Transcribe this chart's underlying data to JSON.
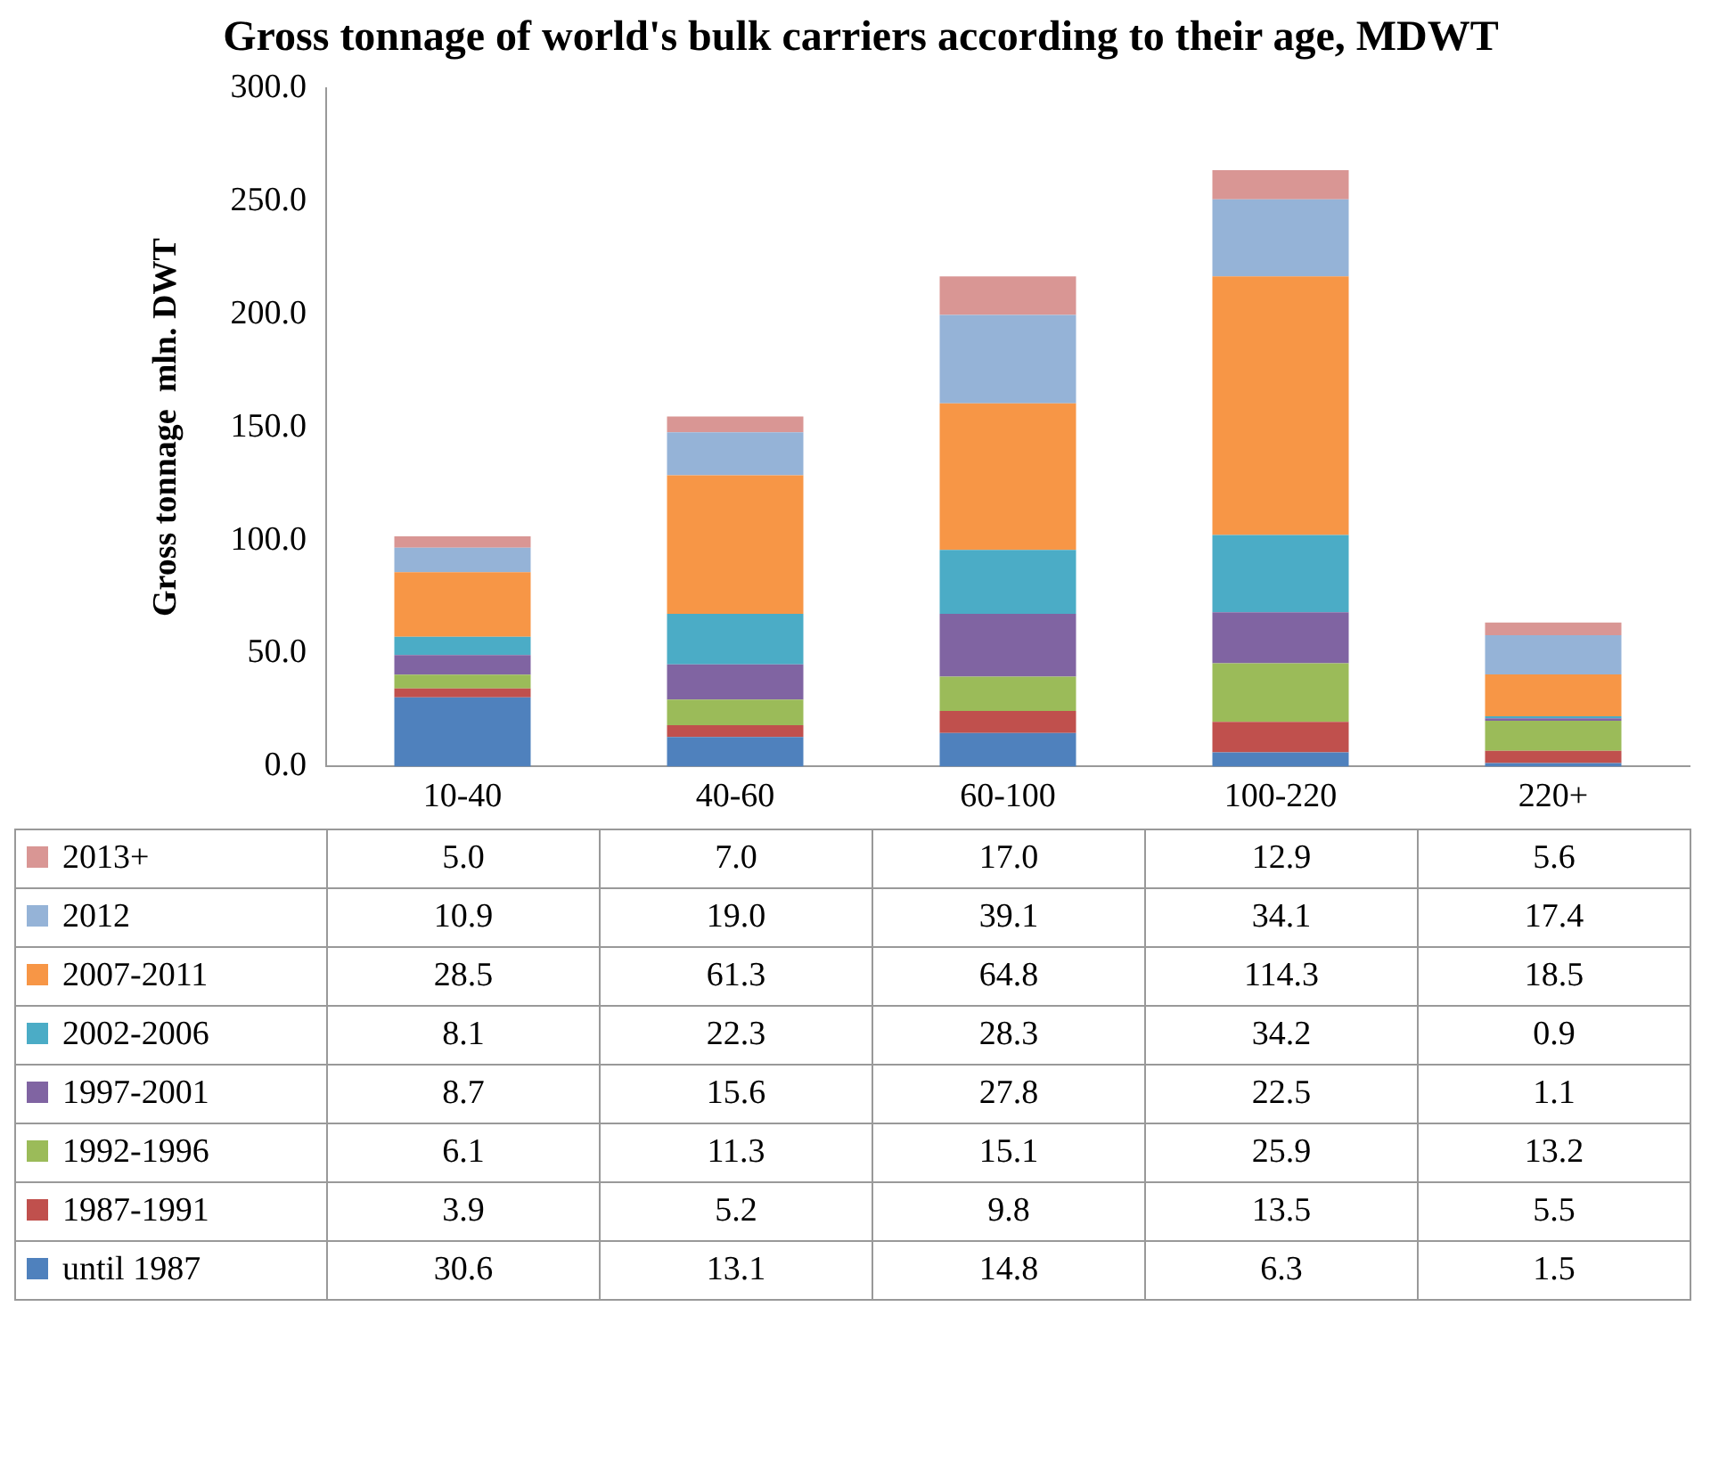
{
  "chart_data": {
    "type": "bar",
    "title": "Gross tonnage of world's bulk carriers according to their age, MDWT",
    "ylabel": "Gross tonnage  mln. DWT",
    "categories": [
      "10-40",
      "40-60",
      "60-100",
      "100-220",
      "220+"
    ],
    "stacked": true,
    "legend": "bottom",
    "grid": false,
    "ylim": [
      0,
      300
    ],
    "yticks": [
      {
        "value": 0,
        "label": "0.0"
      },
      {
        "value": 50,
        "label": "50.0"
      },
      {
        "value": 100,
        "label": "100.0"
      },
      {
        "value": 150,
        "label": "150.0"
      },
      {
        "value": 200,
        "label": "200.0"
      },
      {
        "value": 250,
        "label": "250.0"
      },
      {
        "value": 300,
        "label": "300.0"
      }
    ],
    "series": [
      {
        "name": "until 1987",
        "color": "#4f81bd",
        "values": [
          30.6,
          13.1,
          14.8,
          6.3,
          1.5
        ],
        "value_labels": [
          "30.6",
          "13.1",
          "14.8",
          "6.3",
          "1.5"
        ]
      },
      {
        "name": "1987-1991",
        "color": "#c0504d",
        "values": [
          3.9,
          5.2,
          9.8,
          13.5,
          5.5
        ],
        "value_labels": [
          "3.9",
          "5.2",
          "9.8",
          "13.5",
          "5.5"
        ]
      },
      {
        "name": "1992-1996",
        "color": "#9bbb59",
        "values": [
          6.1,
          11.3,
          15.1,
          25.9,
          13.2
        ],
        "value_labels": [
          "6.1",
          "11.3",
          "15.1",
          "25.9",
          "13.2"
        ]
      },
      {
        "name": "1997-2001",
        "color": "#8064a2",
        "values": [
          8.7,
          15.6,
          27.8,
          22.5,
          1.1
        ],
        "value_labels": [
          "8.7",
          "15.6",
          "27.8",
          "22.5",
          "1.1"
        ]
      },
      {
        "name": "2002-2006",
        "color": "#4bacc6",
        "values": [
          8.1,
          22.3,
          28.3,
          34.2,
          0.9
        ],
        "value_labels": [
          "8.1",
          "22.3",
          "28.3",
          "34.2",
          "0.9"
        ]
      },
      {
        "name": "2007-2011",
        "color": "#f79646",
        "values": [
          28.5,
          61.3,
          64.8,
          114.3,
          18.5
        ],
        "value_labels": [
          "28.5",
          "61.3",
          "64.8",
          "114.3",
          "18.5"
        ]
      },
      {
        "name": "2012",
        "color": "#95b3d7",
        "values": [
          10.9,
          19.0,
          39.1,
          34.1,
          17.4
        ],
        "value_labels": [
          "10.9",
          "19.0",
          "39.1",
          "34.1",
          "17.4"
        ]
      },
      {
        "name": "2013+",
        "color": "#d99694",
        "values": [
          5.0,
          7.0,
          17.0,
          12.9,
          5.6
        ],
        "value_labels": [
          "5.0",
          "7.0",
          "17.0",
          "12.9",
          "5.6"
        ]
      }
    ]
  }
}
